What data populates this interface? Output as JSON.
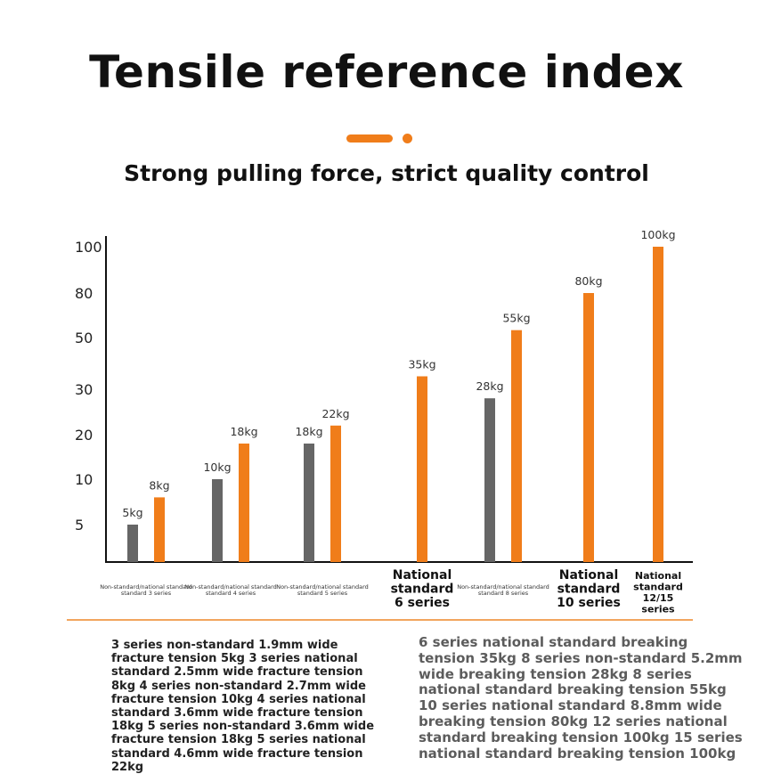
{
  "header": {
    "title": "Tensile reference index",
    "subtitle": "Strong pulling force, strict quality control"
  },
  "colors": {
    "accent": "#f07d1a",
    "non_standard_bar": "#666666",
    "axis": "#111111",
    "divider": "#f2a55e"
  },
  "chart_data": {
    "type": "bar",
    "title": "",
    "xlabel": "",
    "ylabel": "",
    "y_ticks": [
      "5",
      "10",
      "20",
      "30",
      "50",
      "80",
      "100"
    ],
    "categories": [
      {
        "label": "Non-standard/national standard 3 series",
        "style": "small"
      },
      {
        "label": "Non-standard/national standard 4 series",
        "style": "small"
      },
      {
        "label": "Non-standard/national standard 5 series",
        "style": "small"
      },
      {
        "label": "National standard 6 series",
        "style": "bold"
      },
      {
        "label": "Non-standard/national standard 8 series",
        "style": "small"
      },
      {
        "label": "National standard 10 series",
        "style": "bold"
      },
      {
        "label": "National standard 12/15 series",
        "style": "bold-small"
      }
    ],
    "bars": [
      {
        "category": 0,
        "kind": "non-standard",
        "value": 5,
        "label": "5kg"
      },
      {
        "category": 0,
        "kind": "national",
        "value": 8,
        "label": "8kg"
      },
      {
        "category": 1,
        "kind": "non-standard",
        "value": 10,
        "label": "10kg"
      },
      {
        "category": 1,
        "kind": "national",
        "value": 18,
        "label": "18kg"
      },
      {
        "category": 2,
        "kind": "non-standard",
        "value": 18,
        "label": "18kg"
      },
      {
        "category": 2,
        "kind": "national",
        "value": 22,
        "label": "22kg"
      },
      {
        "category": 3,
        "kind": "national",
        "value": 35,
        "label": "35kg"
      },
      {
        "category": 4,
        "kind": "non-standard",
        "value": 28,
        "label": "28kg"
      },
      {
        "category": 4,
        "kind": "national",
        "value": 55,
        "label": "55kg"
      },
      {
        "category": 5,
        "kind": "national",
        "value": 80,
        "label": "80kg"
      },
      {
        "category": 6,
        "kind": "national",
        "value": 100,
        "label": "100kg"
      }
    ],
    "grid": false,
    "legend": "none"
  },
  "descriptions": {
    "left": "3 series non-standard 1.9mm wide fracture tension 5kg 3 series national standard 2.5mm wide fracture tension 8kg 4 series non-standard 2.7mm wide fracture tension 10kg 4 series national standard 3.6mm wide fracture tension 18kg 5 series non-standard 3.6mm wide fracture tension 18kg 5 series national standard 4.6mm wide fracture tension 22kg",
    "right": "6 series national standard breaking tension 35kg 8 series non-standard 5.2mm wide breaking tension 28kg 8 series national standard breaking tension 55kg 10 series national standard 8.8mm wide breaking tension 80kg 12 series national standard breaking tension 100kg 15 series national standard breaking tension 100kg"
  }
}
